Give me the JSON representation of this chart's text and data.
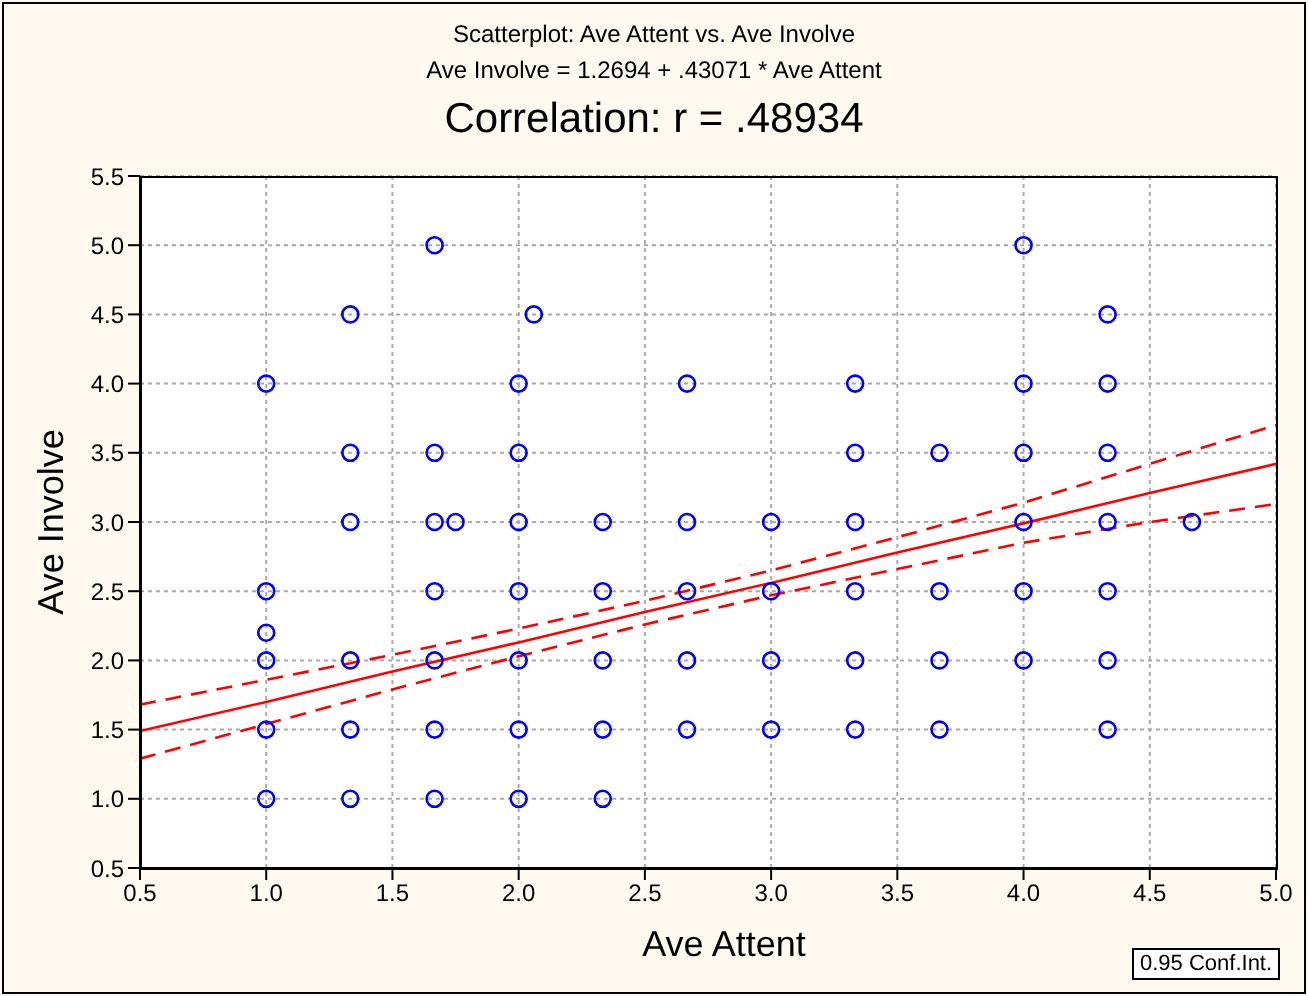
{
  "chart_data": {
    "type": "scatter",
    "title": "Scatterplot: Ave Attent vs. Ave Involve",
    "subtitle": "Ave Involve = 1.2694 + .43071 * Ave Attent",
    "xlabel": "Ave Attent",
    "ylabel": "Ave Involve",
    "annotations": [
      "Correlation: r = .48934",
      "0.95 Conf.Int."
    ],
    "xlim": [
      0.5,
      5.0
    ],
    "ylim": [
      0.5,
      5.5
    ],
    "xticks": [
      {
        "value": 0.5,
        "label": "0.5"
      },
      {
        "value": 1,
        "label": "1.0"
      },
      {
        "value": 1.5,
        "label": "1.5"
      },
      {
        "value": 2,
        "label": "2.0"
      },
      {
        "value": 2.5,
        "label": "2.5"
      },
      {
        "value": 3,
        "label": "3.0"
      },
      {
        "value": 3.5,
        "label": "3.5"
      },
      {
        "value": 4,
        "label": "4.0"
      },
      {
        "value": 4.5,
        "label": "4.5"
      },
      {
        "value": 5,
        "label": "5.0"
      }
    ],
    "yticks": [
      {
        "value": 0.5,
        "label": "0.5"
      },
      {
        "value": 1,
        "label": "1.0"
      },
      {
        "value": 1.5,
        "label": "1.5"
      },
      {
        "value": 2,
        "label": "2.0"
      },
      {
        "value": 2.5,
        "label": "2.5"
      },
      {
        "value": 3,
        "label": "3.0"
      },
      {
        "value": 3.5,
        "label": "3.5"
      },
      {
        "value": 4,
        "label": "4.0"
      },
      {
        "value": 4.5,
        "label": "4.5"
      },
      {
        "value": 5,
        "label": "5.0"
      },
      {
        "value": 5.5,
        "label": "5.5"
      }
    ],
    "grid": true,
    "marker": "circle",
    "series": [
      {
        "color": "#0000ff",
        "x": [
          1.667,
          4.0,
          1.333,
          2.06,
          4.333,
          1.0,
          2.0,
          2.667,
          3.333,
          4.0,
          4.333,
          1.333,
          1.667,
          2.0,
          3.333,
          3.667,
          4.0,
          4.333,
          1.333,
          1.667,
          1.75,
          2.0,
          2.333,
          2.667,
          3.0,
          3.333,
          4.0,
          4.333,
          4.667,
          1.0,
          1.667,
          2.0,
          2.333,
          2.667,
          3.0,
          3.333,
          3.667,
          4.0,
          4.333,
          1.0,
          1.0,
          1.333,
          1.667,
          2.0,
          2.333,
          2.667,
          3.0,
          3.333,
          3.667,
          4.0,
          4.333,
          1.0,
          1.333,
          1.667,
          2.0,
          2.333,
          2.667,
          3.0,
          3.333,
          3.667,
          4.333,
          1.0,
          1.333,
          1.667,
          2.0,
          2.333
        ],
        "values": [
          5.0,
          5.0,
          4.5,
          4.5,
          4.5,
          4.0,
          4.0,
          4.0,
          4.0,
          4.0,
          4.0,
          3.5,
          3.5,
          3.5,
          3.5,
          3.5,
          3.5,
          3.5,
          3.0,
          3.0,
          3.0,
          3.0,
          3.0,
          3.0,
          3.0,
          3.0,
          3.0,
          3.0,
          3.0,
          2.5,
          2.5,
          2.5,
          2.5,
          2.5,
          2.5,
          2.5,
          2.5,
          2.5,
          2.5,
          2.2,
          2.0,
          2.0,
          2.0,
          2.0,
          2.0,
          2.0,
          2.0,
          2.0,
          2.0,
          2.0,
          2.0,
          1.5,
          1.5,
          1.5,
          1.5,
          1.5,
          1.5,
          1.5,
          1.5,
          1.5,
          1.5,
          1.0,
          1.0,
          1.0,
          1.0,
          1.0
        ]
      },
      {
        "type": "line",
        "color": "#ff0000",
        "marker": "none",
        "x": [
          0.5,
          1.0,
          1.5,
          2.0,
          2.5,
          3.0,
          3.5,
          4.0,
          4.5,
          5.0
        ],
        "values": [
          1.49,
          1.7,
          1.92,
          2.13,
          2.35,
          2.56,
          2.78,
          2.99,
          3.21,
          3.42
        ]
      },
      {
        "type": "line",
        "color": "#ff0000",
        "marker": "none",
        "line_style": "dashed",
        "x": [
          0.5,
          1.0,
          1.5,
          2.0,
          2.5,
          3.0,
          3.5,
          4.0,
          4.5,
          5.0
        ],
        "values": [
          1.29,
          1.54,
          1.79,
          2.03,
          2.26,
          2.47,
          2.66,
          2.85,
          3.0,
          3.13
        ]
      },
      {
        "type": "line",
        "color": "#ff0000",
        "marker": "none",
        "line_style": "dashed",
        "x": [
          0.5,
          1.0,
          1.5,
          2.0,
          2.5,
          3.0,
          3.5,
          4.0,
          4.5,
          5.0
        ],
        "values": [
          1.68,
          1.86,
          2.04,
          2.23,
          2.43,
          2.65,
          2.89,
          3.14,
          3.42,
          3.7
        ]
      }
    ]
  }
}
